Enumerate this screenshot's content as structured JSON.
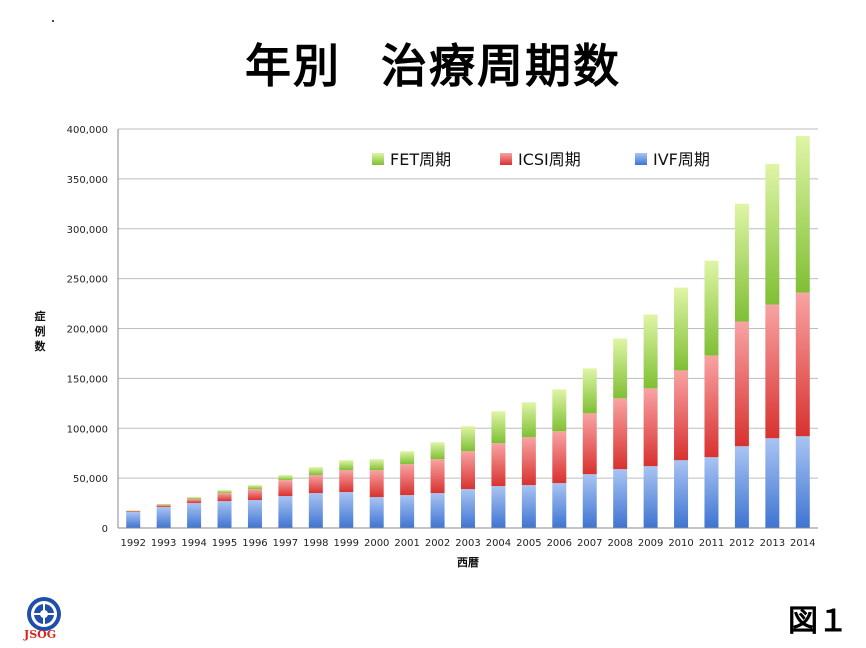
{
  "title": {
    "part1": "年別",
    "part2": "治療周期数"
  },
  "figure_label": "図１",
  "logo_text": "JSOG",
  "chart_data": {
    "type": "bar",
    "stacked": true,
    "categories": [
      "1992",
      "1993",
      "1994",
      "1995",
      "1996",
      "1997",
      "1998",
      "1999",
      "2000",
      "2001",
      "2002",
      "2003",
      "2004",
      "2005",
      "2006",
      "2007",
      "2008",
      "2009",
      "2010",
      "2011",
      "2012",
      "2013",
      "2014"
    ],
    "series": [
      {
        "name": "IVF周期",
        "values": [
          16000,
          21000,
          25000,
          27000,
          28000,
          32000,
          35000,
          36000,
          31000,
          33000,
          35000,
          39000,
          42000,
          43000,
          45000,
          54000,
          59000,
          62000,
          68000,
          71000,
          82000,
          90000,
          92000
        ],
        "color": "#4a7fd9"
      },
      {
        "name": "ICSI周期",
        "values": [
          1000,
          2000,
          4000,
          8000,
          11000,
          16000,
          18000,
          22000,
          27000,
          31000,
          34000,
          38000,
          43000,
          48000,
          52000,
          61000,
          71000,
          78000,
          90000,
          102000,
          125000,
          134000,
          144000
        ],
        "color": "#d93a3a"
      },
      {
        "name": "FET周期",
        "values": [
          500,
          1000,
          2000,
          3000,
          4000,
          5000,
          8000,
          10000,
          11000,
          13000,
          17000,
          25000,
          32000,
          35000,
          42000,
          45000,
          60000,
          74000,
          83000,
          95000,
          118000,
          141000,
          157000
        ],
        "color": "#8ec93a"
      }
    ],
    "legend_order": [
      "FET周期",
      "ICSI周期",
      "IVF周期"
    ],
    "xlabel": "西暦",
    "ylabel": "症例数",
    "ylim": [
      0,
      400000
    ],
    "yticks": [
      0,
      50000,
      100000,
      150000,
      200000,
      250000,
      300000,
      350000,
      400000
    ],
    "ytick_labels": [
      "0",
      "50,000",
      "100,000",
      "150,000",
      "200,000",
      "250,000",
      "300,000",
      "350,000",
      "400,000"
    ],
    "grid": true,
    "legend_position": "top"
  }
}
